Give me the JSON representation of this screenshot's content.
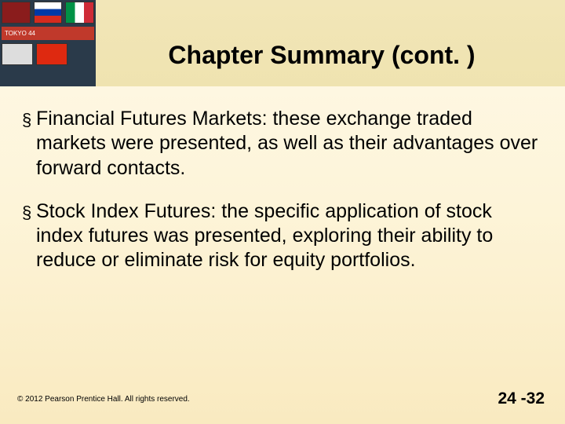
{
  "slide": {
    "title": "Chapter Summary (cont. )",
    "bullets": [
      "Financial Futures Markets: these exchange traded markets were presented, as well as their advantages over forward contacts.",
      "Stock Index Futures: the specific application of stock index futures was presented, exploring their ability to reduce or eliminate risk for equity portfolios."
    ],
    "footer": {
      "copyright": "© 2012 Pearson Prentice Hall. All rights reserved.",
      "page": "24 -32"
    }
  },
  "style": {
    "background_gradient": [
      "#fef9e8",
      "#f9eac0"
    ],
    "header_gradient": [
      "#f2e6b8",
      "#efe3b0"
    ],
    "title_fontsize": 32,
    "title_fontweight": "bold",
    "title_color": "#000000",
    "body_fontsize": 25,
    "body_color": "#000000",
    "bullet_marker": "§",
    "footer_left_fontsize": 10,
    "footer_right_fontsize": 21,
    "footer_right_fontweight": "bold"
  }
}
